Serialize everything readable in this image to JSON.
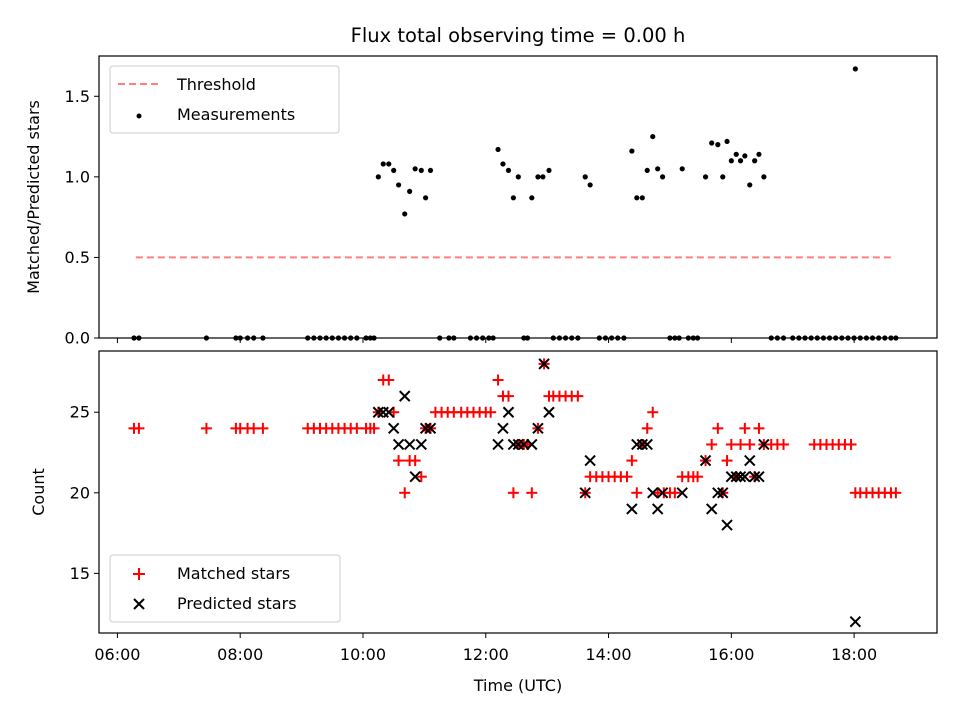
{
  "chart_data": [
    {
      "type": "scatter",
      "title": "Flux total observing time = 0.00 h",
      "xlabel": "",
      "ylabel": "Matched/Predicted stars",
      "xlim": [
        5.7,
        19.35
      ],
      "ylim": [
        0.0,
        1.75
      ],
      "yticks": [
        "0.0",
        "0.5",
        "1.0",
        "1.5"
      ],
      "legend_position": "upper-left",
      "threshold": {
        "name": "Threshold",
        "y": 0.5,
        "x_range": [
          6.3,
          18.6
        ],
        "color": "#ff7f7f",
        "style": "dashed"
      },
      "series": [
        {
          "name": "Measurements",
          "color": "#000000",
          "marker": "dot",
          "points": [
            [
              6.27,
              0
            ],
            [
              6.35,
              0
            ],
            [
              7.45,
              0
            ],
            [
              7.93,
              0
            ],
            [
              8.0,
              0
            ],
            [
              8.12,
              0
            ],
            [
              8.22,
              0
            ],
            [
              8.37,
              0
            ],
            [
              9.1,
              0
            ],
            [
              9.2,
              0
            ],
            [
              9.3,
              0
            ],
            [
              9.4,
              0
            ],
            [
              9.5,
              0
            ],
            [
              9.6,
              0
            ],
            [
              9.7,
              0
            ],
            [
              9.8,
              0
            ],
            [
              9.9,
              0
            ],
            [
              10.05,
              0
            ],
            [
              10.12,
              0
            ],
            [
              10.18,
              0
            ],
            [
              10.25,
              1.0
            ],
            [
              10.33,
              1.08
            ],
            [
              10.42,
              1.08
            ],
            [
              10.5,
              1.04
            ],
            [
              10.58,
              0.95
            ],
            [
              10.68,
              0.77
            ],
            [
              10.76,
              0.91
            ],
            [
              10.85,
              1.05
            ],
            [
              10.95,
              1.04
            ],
            [
              11.02,
              0.87
            ],
            [
              11.1,
              1.04
            ],
            [
              11.25,
              0
            ],
            [
              11.4,
              0
            ],
            [
              11.48,
              0
            ],
            [
              11.75,
              0
            ],
            [
              11.85,
              0
            ],
            [
              11.95,
              0
            ],
            [
              12.05,
              0
            ],
            [
              12.12,
              0
            ],
            [
              12.2,
              1.17
            ],
            [
              12.28,
              1.08
            ],
            [
              12.37,
              1.04
            ],
            [
              12.45,
              0.87
            ],
            [
              12.53,
              1.0
            ],
            [
              12.75,
              0.87
            ],
            [
              12.85,
              1.0
            ],
            [
              12.93,
              1.0
            ],
            [
              13.03,
              1.04
            ],
            [
              12.62,
              0
            ],
            [
              12.68,
              0
            ],
            [
              13.1,
              0
            ],
            [
              13.2,
              0
            ],
            [
              13.3,
              0
            ],
            [
              13.4,
              0
            ],
            [
              13.5,
              0
            ],
            [
              13.62,
              1.0
            ],
            [
              13.7,
              0.95
            ],
            [
              13.85,
              0
            ],
            [
              13.95,
              0
            ],
            [
              14.05,
              0
            ],
            [
              14.15,
              0
            ],
            [
              14.25,
              0
            ],
            [
              14.38,
              1.16
            ],
            [
              14.46,
              0.87
            ],
            [
              14.55,
              0.87
            ],
            [
              14.63,
              1.04
            ],
            [
              14.72,
              1.25
            ],
            [
              14.8,
              1.05
            ],
            [
              14.88,
              1.0
            ],
            [
              15.0,
              0
            ],
            [
              15.08,
              0
            ],
            [
              15.15,
              0
            ],
            [
              15.3,
              0
            ],
            [
              15.38,
              0
            ],
            [
              15.45,
              0
            ],
            [
              15.2,
              1.05
            ],
            [
              15.58,
              1.0
            ],
            [
              15.68,
              1.21
            ],
            [
              15.78,
              1.2
            ],
            [
              15.86,
              1.0
            ],
            [
              15.93,
              1.22
            ],
            [
              16.0,
              1.1
            ],
            [
              16.08,
              1.14
            ],
            [
              16.15,
              1.1
            ],
            [
              16.22,
              1.13
            ],
            [
              16.3,
              0.95
            ],
            [
              16.38,
              1.1
            ],
            [
              16.45,
              1.14
            ],
            [
              16.53,
              1.0
            ],
            [
              16.65,
              0
            ],
            [
              16.75,
              0
            ],
            [
              16.85,
              0
            ],
            [
              17.0,
              0
            ],
            [
              17.1,
              0
            ],
            [
              17.2,
              0
            ],
            [
              17.3,
              0
            ],
            [
              17.4,
              0
            ],
            [
              17.5,
              0
            ],
            [
              17.6,
              0
            ],
            [
              17.7,
              0
            ],
            [
              17.8,
              0
            ],
            [
              17.9,
              0
            ],
            [
              18.0,
              0
            ],
            [
              18.02,
              1.67
            ],
            [
              18.1,
              0
            ],
            [
              18.2,
              0
            ],
            [
              18.3,
              0
            ],
            [
              18.4,
              0
            ],
            [
              18.5,
              0
            ],
            [
              18.6,
              0
            ],
            [
              18.68,
              0
            ]
          ]
        }
      ]
    },
    {
      "type": "scatter",
      "title": "",
      "xlabel": "Time (UTC)",
      "ylabel": "Count",
      "xlim": [
        5.7,
        19.35
      ],
      "ylim": [
        11.3,
        28.8
      ],
      "xticks": [
        {
          "v": 6,
          "label": "06:00"
        },
        {
          "v": 8,
          "label": "08:00"
        },
        {
          "v": 10,
          "label": "10:00"
        },
        {
          "v": 12,
          "label": "12:00"
        },
        {
          "v": 14,
          "label": "14:00"
        },
        {
          "v": 16,
          "label": "16:00"
        },
        {
          "v": 18,
          "label": "18:00"
        }
      ],
      "yticks": [
        15,
        20,
        25
      ],
      "legend_position": "lower-left",
      "series": [
        {
          "name": "Matched stars",
          "color": "#ff0000",
          "marker": "plus",
          "points": [
            [
              6.27,
              24
            ],
            [
              6.35,
              24
            ],
            [
              7.45,
              24
            ],
            [
              7.93,
              24
            ],
            [
              8.0,
              24
            ],
            [
              8.12,
              24
            ],
            [
              8.22,
              24
            ],
            [
              8.37,
              24
            ],
            [
              9.1,
              24
            ],
            [
              9.2,
              24
            ],
            [
              9.3,
              24
            ],
            [
              9.4,
              24
            ],
            [
              9.5,
              24
            ],
            [
              9.6,
              24
            ],
            [
              9.7,
              24
            ],
            [
              9.8,
              24
            ],
            [
              9.9,
              24
            ],
            [
              10.05,
              24
            ],
            [
              10.12,
              24
            ],
            [
              10.18,
              24
            ],
            [
              10.25,
              25
            ],
            [
              10.33,
              27
            ],
            [
              10.42,
              27
            ],
            [
              10.5,
              25
            ],
            [
              10.58,
              22
            ],
            [
              10.68,
              20
            ],
            [
              10.76,
              22
            ],
            [
              10.85,
              22
            ],
            [
              10.95,
              21
            ],
            [
              11.02,
              24
            ],
            [
              11.1,
              24
            ],
            [
              11.18,
              25
            ],
            [
              11.28,
              25
            ],
            [
              11.38,
              25
            ],
            [
              11.48,
              25
            ],
            [
              11.6,
              25
            ],
            [
              11.7,
              25
            ],
            [
              11.8,
              25
            ],
            [
              11.9,
              25
            ],
            [
              12.0,
              25
            ],
            [
              12.08,
              25
            ],
            [
              12.2,
              27
            ],
            [
              12.28,
              26
            ],
            [
              12.37,
              26
            ],
            [
              12.45,
              20
            ],
            [
              12.53,
              23
            ],
            [
              12.62,
              23
            ],
            [
              12.68,
              23
            ],
            [
              12.75,
              20
            ],
            [
              12.85,
              24
            ],
            [
              12.95,
              28
            ],
            [
              13.03,
              26
            ],
            [
              13.1,
              26
            ],
            [
              13.2,
              26
            ],
            [
              13.3,
              26
            ],
            [
              13.4,
              26
            ],
            [
              13.5,
              26
            ],
            [
              13.62,
              20
            ],
            [
              13.7,
              21
            ],
            [
              13.8,
              21
            ],
            [
              13.9,
              21
            ],
            [
              14.0,
              21
            ],
            [
              14.1,
              21
            ],
            [
              14.2,
              21
            ],
            [
              14.3,
              21
            ],
            [
              14.38,
              22
            ],
            [
              14.46,
              20
            ],
            [
              14.55,
              23
            ],
            [
              14.63,
              24
            ],
            [
              14.72,
              25
            ],
            [
              14.8,
              20
            ],
            [
              14.9,
              20
            ],
            [
              15.0,
              20
            ],
            [
              15.08,
              20
            ],
            [
              15.2,
              21
            ],
            [
              15.3,
              21
            ],
            [
              15.38,
              21
            ],
            [
              15.45,
              21
            ],
            [
              15.58,
              22
            ],
            [
              15.68,
              23
            ],
            [
              15.78,
              24
            ],
            [
              15.86,
              20
            ],
            [
              15.93,
              22
            ],
            [
              16.0,
              23
            ],
            [
              16.08,
              21
            ],
            [
              16.15,
              23
            ],
            [
              16.22,
              24
            ],
            [
              16.3,
              23
            ],
            [
              16.38,
              21
            ],
            [
              16.45,
              24
            ],
            [
              16.53,
              23
            ],
            [
              16.65,
              23
            ],
            [
              16.75,
              23
            ],
            [
              16.85,
              23
            ],
            [
              17.35,
              23
            ],
            [
              17.45,
              23
            ],
            [
              17.55,
              23
            ],
            [
              17.65,
              23
            ],
            [
              17.75,
              23
            ],
            [
              17.85,
              23
            ],
            [
              17.95,
              23
            ],
            [
              18.02,
              20
            ],
            [
              18.1,
              20
            ],
            [
              18.2,
              20
            ],
            [
              18.3,
              20
            ],
            [
              18.4,
              20
            ],
            [
              18.5,
              20
            ],
            [
              18.6,
              20
            ],
            [
              18.68,
              20
            ]
          ]
        },
        {
          "name": "Predicted stars",
          "color": "#000000",
          "marker": "x",
          "points": [
            [
              10.25,
              25
            ],
            [
              10.33,
              25
            ],
            [
              10.42,
              25
            ],
            [
              10.5,
              24
            ],
            [
              10.58,
              23
            ],
            [
              10.68,
              26
            ],
            [
              10.76,
              23
            ],
            [
              10.85,
              21
            ],
            [
              10.95,
              23
            ],
            [
              11.02,
              24
            ],
            [
              11.1,
              24
            ],
            [
              12.2,
              23
            ],
            [
              12.28,
              24
            ],
            [
              12.37,
              25
            ],
            [
              12.45,
              23
            ],
            [
              12.53,
              23
            ],
            [
              12.62,
              23
            ],
            [
              12.75,
              23
            ],
            [
              12.85,
              24
            ],
            [
              12.95,
              28
            ],
            [
              13.03,
              25
            ],
            [
              13.62,
              20
            ],
            [
              13.7,
              22
            ],
            [
              14.38,
              19
            ],
            [
              14.46,
              23
            ],
            [
              14.55,
              23
            ],
            [
              14.63,
              23
            ],
            [
              14.72,
              20
            ],
            [
              14.8,
              19
            ],
            [
              14.88,
              20
            ],
            [
              15.2,
              20
            ],
            [
              15.58,
              22
            ],
            [
              15.68,
              19
            ],
            [
              15.78,
              20
            ],
            [
              15.86,
              20
            ],
            [
              15.93,
              18
            ],
            [
              16.0,
              21
            ],
            [
              16.08,
              21
            ],
            [
              16.15,
              21
            ],
            [
              16.22,
              21
            ],
            [
              16.3,
              22
            ],
            [
              16.38,
              21
            ],
            [
              16.45,
              21
            ],
            [
              16.53,
              23
            ],
            [
              18.02,
              12
            ]
          ]
        }
      ]
    }
  ]
}
